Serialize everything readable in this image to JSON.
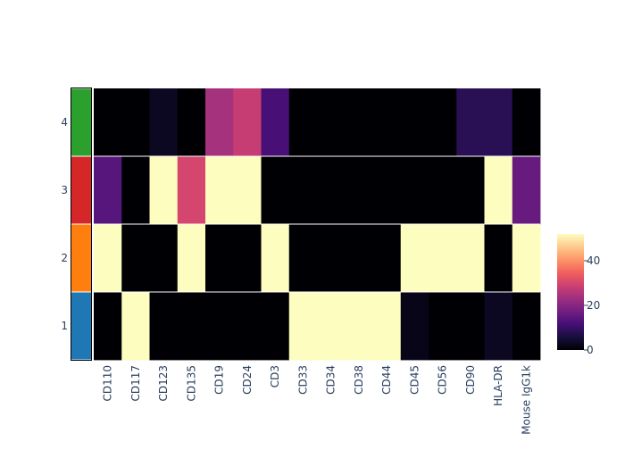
{
  "chart_data": {
    "type": "heatmap",
    "x_categories": [
      "CD110",
      "CD117",
      "CD123",
      "CD135",
      "CD19",
      "CD24",
      "CD3",
      "CD33",
      "CD34",
      "CD38",
      "CD44",
      "CD45",
      "CD56",
      "CD90",
      "HLA-DR",
      "Mouse IgG1k"
    ],
    "y_categories": [
      "1",
      "2",
      "3",
      "4"
    ],
    "row_group_colors": [
      "#1f77b4",
      "#ff7f0e",
      "#d62728",
      "#2ca02c"
    ],
    "values": [
      [
        0,
        52,
        0,
        0,
        0,
        0,
        0,
        52,
        52,
        52,
        52,
        2,
        0,
        0,
        3,
        0
      ],
      [
        52,
        0,
        0,
        52,
        0,
        0,
        52,
        0,
        0,
        0,
        0,
        52,
        52,
        52,
        0,
        52
      ],
      [
        14,
        0,
        52,
        30,
        52,
        52,
        0,
        0,
        0,
        0,
        0,
        0,
        0,
        0,
        52,
        16
      ],
      [
        0,
        0,
        3,
        0,
        24,
        28,
        12,
        0,
        0,
        0,
        0,
        0,
        0,
        8,
        8,
        0
      ]
    ],
    "zmin": 0,
    "zmax": 52,
    "colorscale": "magma",
    "colorbar": {
      "ticks": [
        0,
        20,
        40
      ],
      "tick_labels": [
        "0",
        "20",
        "40"
      ]
    }
  }
}
